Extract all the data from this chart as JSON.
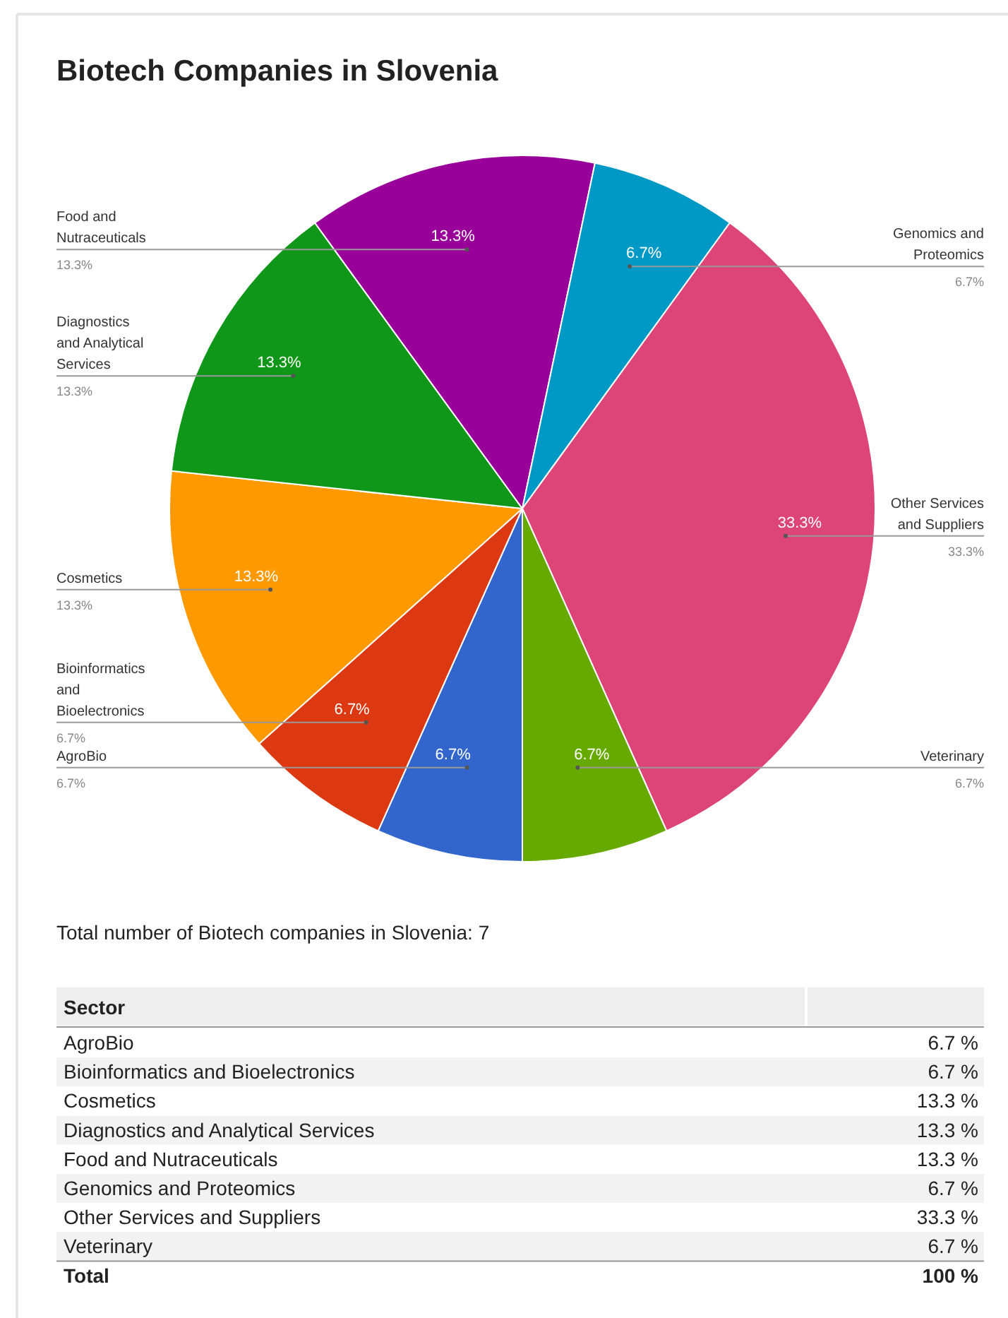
{
  "chart_data": [
    {
      "type": "pie",
      "title": "Biotech Companies in Slovenia",
      "categories": [
        "AgroBio",
        "Bioinformatics and Bioelectronics",
        "Cosmetics",
        "Diagnostics and Analytical Services",
        "Food and Nutraceuticals",
        "Genomics and Proteomics",
        "Other Services and Suppliers",
        "Veterinary"
      ],
      "values": [
        6.7,
        6.7,
        13.3,
        13.3,
        13.3,
        6.7,
        33.3,
        6.7
      ],
      "value_labels": [
        "6.7%",
        "6.7%",
        "13.3%",
        "13.3%",
        "13.3%",
        "6.7%",
        "33.3%",
        "6.7%"
      ],
      "colors": [
        "#3366cc",
        "#dc3912",
        "#ff9900",
        "#109618",
        "#990099",
        "#0099c6",
        "#dd4477",
        "#66aa00"
      ],
      "annotations": [
        "Total number of Biotech companies in Slovenia: 7"
      ]
    },
    {
      "type": "other",
      "legend_title": "Sector",
      "categories": [
        "AgroBio",
        "Bioinformatics and Bioelectronics",
        "Cosmetics",
        "Diagnostics and Analytical Services",
        "Food and Nutraceuticals",
        "Genomics and Proteomics",
        "Other Services and Suppliers",
        "Veterinary",
        "Total"
      ],
      "value_labels": [
        "6.7 %",
        "6.7 %",
        "13.3 %",
        "13.3 %",
        "13.3 %",
        "6.7 %",
        "33.3 %",
        "6.7 %",
        "100 %"
      ]
    }
  ]
}
